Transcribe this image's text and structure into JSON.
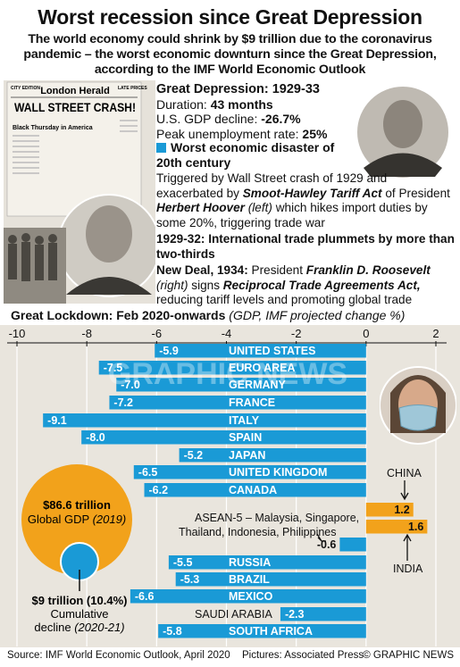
{
  "title": "Worst recession since Great Depression",
  "subtitle": "The world economy could shrink by $9 trillion due to the coronavirus pandemic – the worst economic downturn since the Great Depression, according to the IMF World Economic Outlook",
  "newspaper": {
    "masthead": "London Herald",
    "left_tag": "CITY EDITION",
    "right_tag": "LATE PRICES",
    "headline": "WALL STREET CRASH!",
    "subhead": "Black Thursday in America"
  },
  "depression": {
    "heading": "Great Depression: 1929-33",
    "duration_label": "Duration:",
    "duration_value": "43 months",
    "gdp_label": "U.S. GDP decline:",
    "gdp_value": "-26.7%",
    "unemp_label": "Peak unemployment rate:",
    "unemp_value": "25%",
    "worst_heading": "Worst economic disaster of 20th century",
    "triggered_pre": "Triggered by Wall Street crash of 1929 and exacerbated by",
    "act_name": "Smoot-Hawley Tariff Act",
    "of_president": "of President",
    "hoover": "Herbert Hoover",
    "left_note": "(left)",
    "triggered_post": "which hikes import duties by some 20%, triggering trade war",
    "trade_heading": "1929-32: International trade plummets by more than two-thirds",
    "newdeal_label": "New Deal, 1934:",
    "newdeal_pre": "President",
    "roosevelt": "Franklin D. Roosevelt",
    "right_note": "(right)",
    "signs": "signs",
    "rta": "Reciprocal Trade Agreements Act,",
    "newdeal_post": "reducing tariff levels and promoting global trade"
  },
  "lockdown_title": "Great Lockdown: Feb 2020-onwards",
  "lockdown_note": "(GDP, IMF projected change %)",
  "colors": {
    "bar": "#1a9ad6",
    "positive_bar": "#f2a21b",
    "circle_outer": "#f2a21b",
    "circle_inner": "#1a9ad6",
    "panel": "#e9e5dd"
  },
  "chart_data": {
    "type": "bar",
    "orientation": "horizontal",
    "xlim": [
      -10,
      2
    ],
    "ticks": [
      -10,
      -8,
      -6,
      -4,
      -2,
      0,
      2
    ],
    "categories": [
      "UNITED STATES",
      "EURO AREA",
      "GERMANY",
      "FRANCE",
      "ITALY",
      "SPAIN",
      "JAPAN",
      "UNITED KINGDOM",
      "CANADA",
      "CHINA",
      "INDIA",
      "ASEAN-5",
      "RUSSIA",
      "BRAZIL",
      "MEXICO",
      "SAUDI ARABIA",
      "SOUTH AFRICA"
    ],
    "values": [
      -5.9,
      -7.5,
      -7.0,
      -7.2,
      -9.1,
      -8.0,
      -5.2,
      -6.5,
      -6.2,
      1.2,
      1.6,
      -0.6,
      -5.5,
      -5.3,
      -6.6,
      -2.3,
      -5.8
    ],
    "value_labels": [
      "-5.9",
      "-7.5",
      "-7.0",
      "-7.2",
      "-9.1",
      "-8.0",
      "-5.2",
      "-6.5",
      "-6.2",
      "1.2",
      "1.6",
      "-0.6",
      "-5.5",
      "-5.3",
      "-6.6",
      "-2.3",
      "-5.8"
    ],
    "asean_note": "ASEAN-5 – Malaysia, Singapore, Thailand, Indonesia, Philippines",
    "china_label": "CHINA",
    "india_label": "INDIA",
    "saudi_label": "SAUDI ARABIA"
  },
  "gdp_circle": {
    "global_value": "$86.6 trillion",
    "global_label": "Global GDP",
    "global_year": "(2019)",
    "decline_value": "$9 trillion (10.4%)",
    "decline_label": "Cumulative decline",
    "decline_years": "(2020-21)"
  },
  "watermark": "GRAPHIC NEWS",
  "footer": {
    "source": "Source: IMF World Economic Outlook, April 2020",
    "pictures": "Pictures: Associated Press",
    "credit": "© GRAPHIC NEWS"
  }
}
